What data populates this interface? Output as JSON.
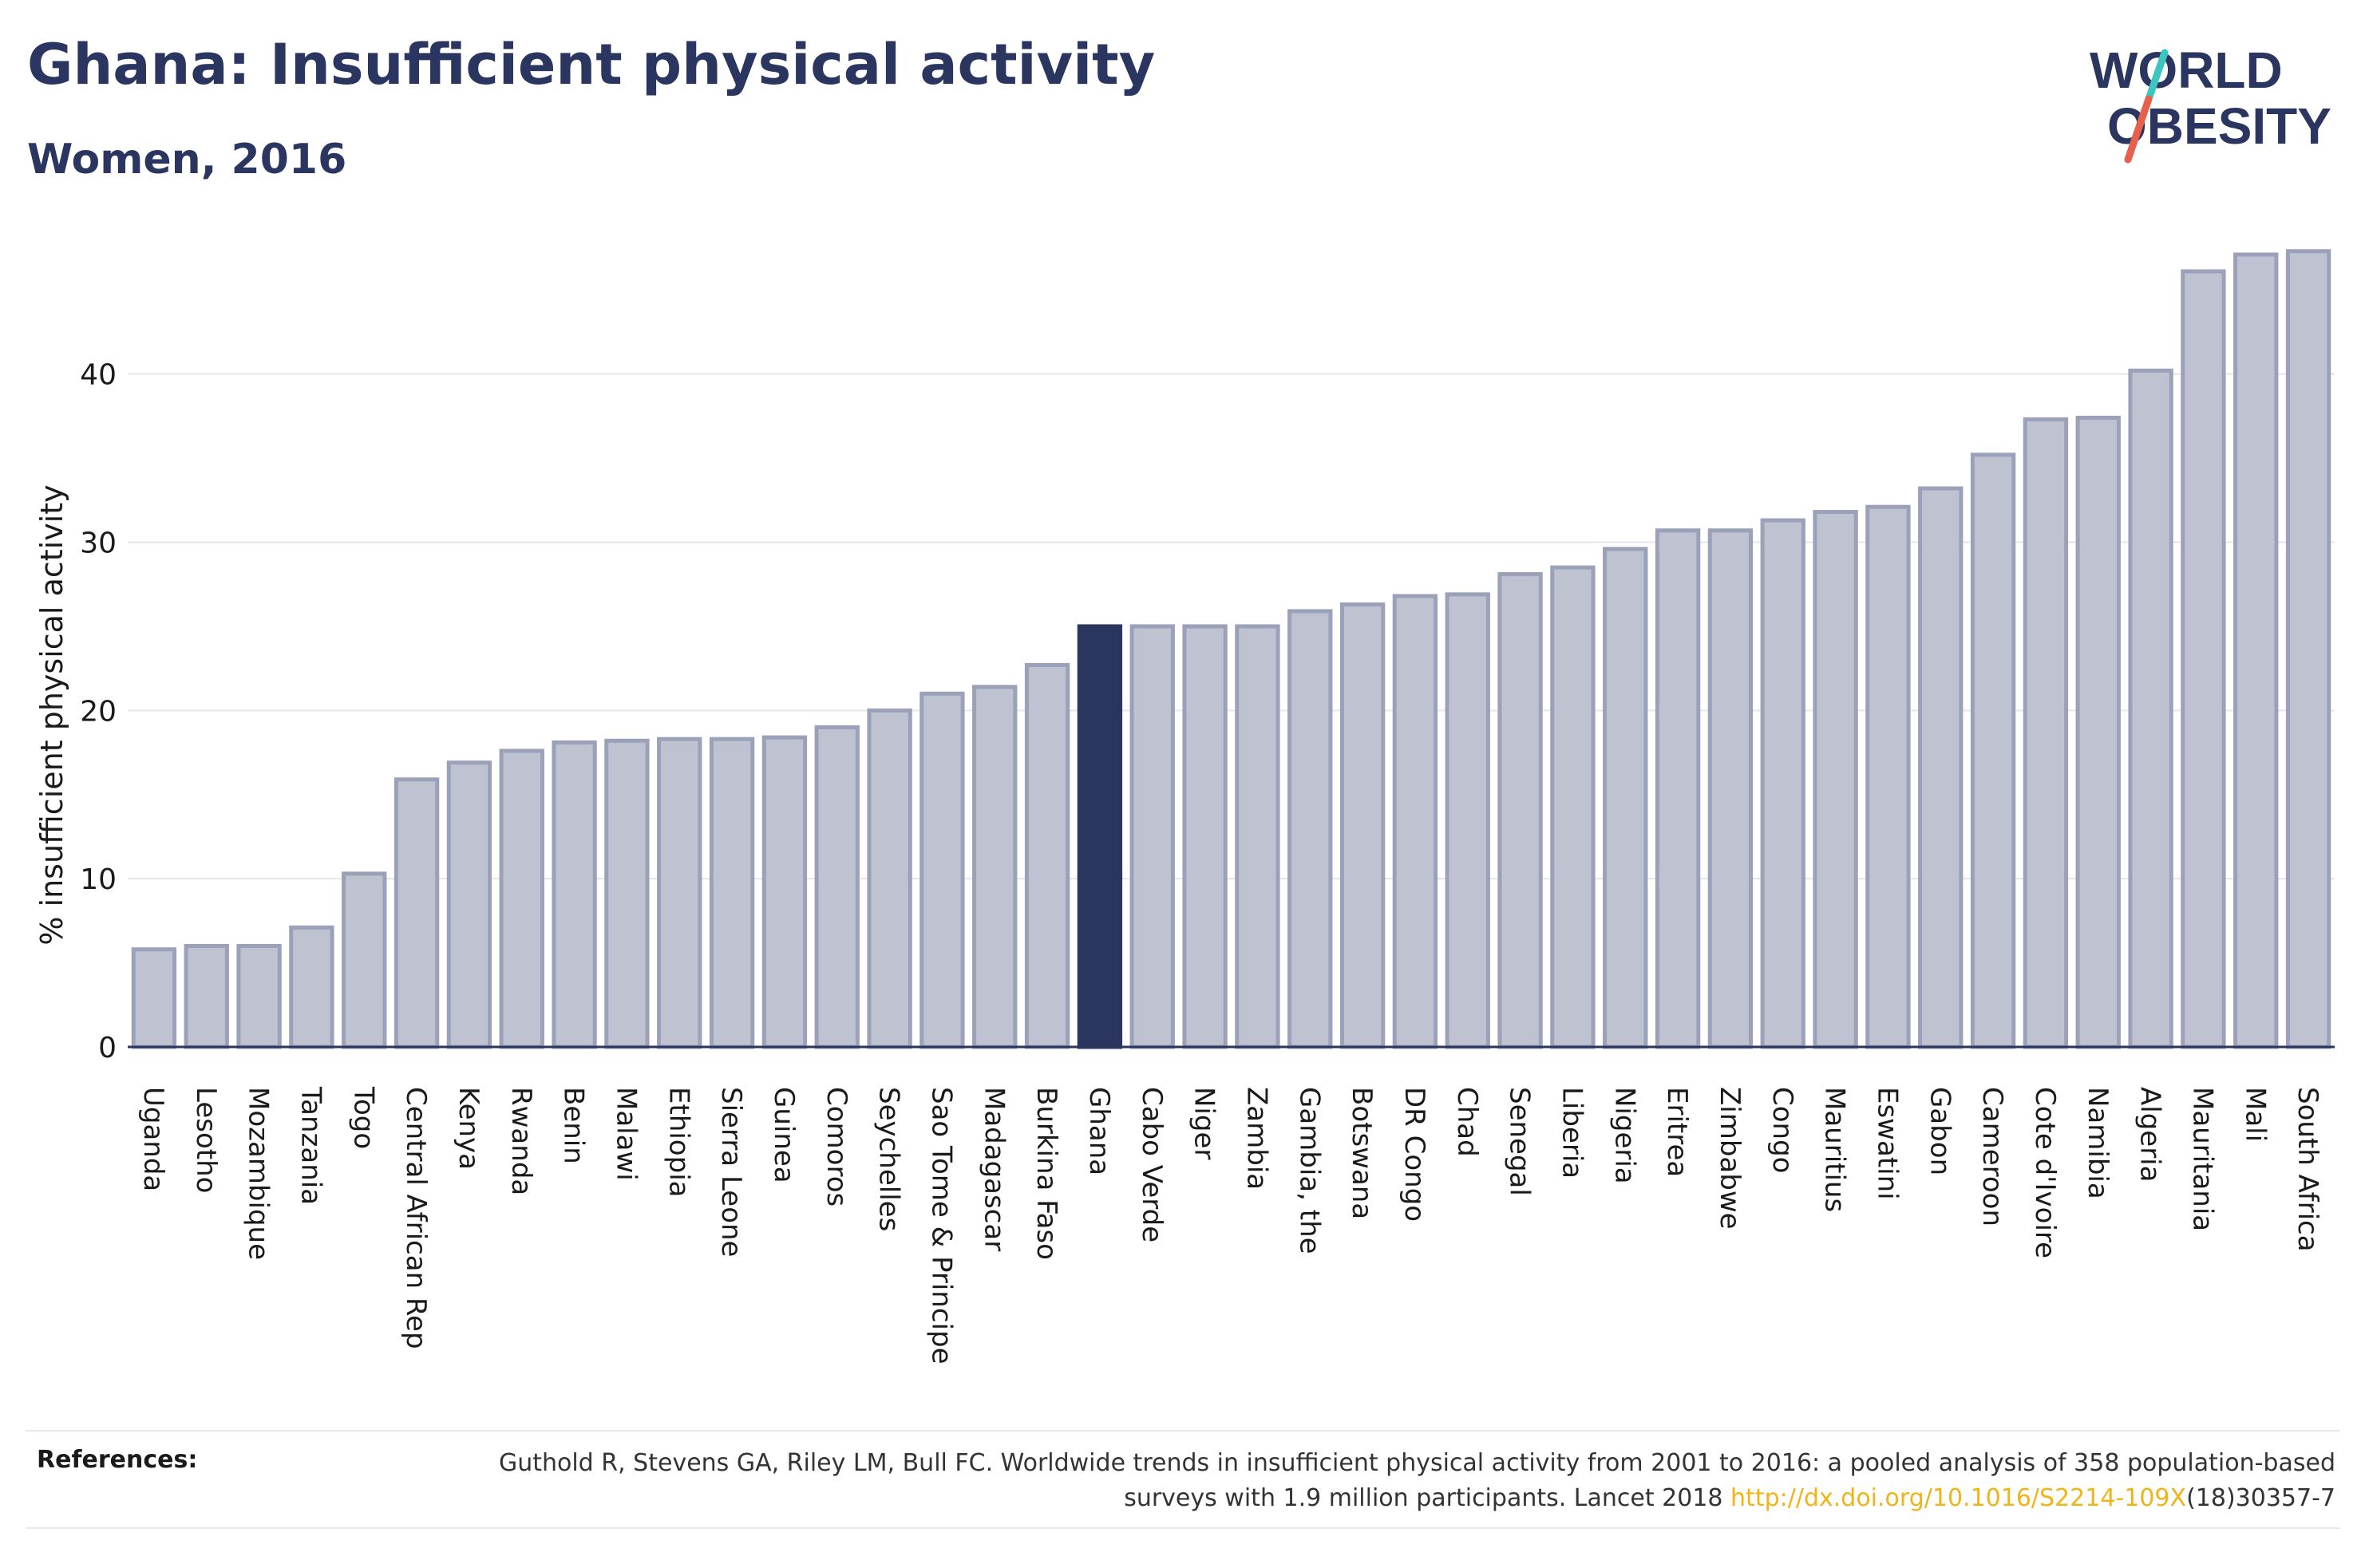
{
  "header": {
    "title": "Ghana: Insufficient physical activity",
    "subtitle": "Women, 2016"
  },
  "logo": {
    "line1": "WORLD",
    "line2": "OBESITY"
  },
  "colors": {
    "bar": "#bfc3d1",
    "bar_stroke": "#9aa1b8",
    "highlight": "#2b3660",
    "accent_teal": "#3cc6c0",
    "accent_red": "#e8604c",
    "link": "#f0b419"
  },
  "chart_data": {
    "type": "bar",
    "ylabel": "% insufficient physical activity",
    "ylim": [
      0,
      48
    ],
    "yticks": [
      0,
      10,
      20,
      30,
      40
    ],
    "grid": true,
    "highlight": "Ghana",
    "categories": [
      "Uganda",
      "Lesotho",
      "Mozambique",
      "Tanzania",
      "Togo",
      "Central African Rep",
      "Kenya",
      "Rwanda",
      "Benin",
      "Malawi",
      "Ethiopia",
      "Sierra Leone",
      "Guinea",
      "Comoros",
      "Seychelles",
      "Sao Tome & Principe",
      "Madagascar",
      "Burkina Faso",
      "Ghana",
      "Cabo Verde",
      "Niger",
      "Zambia",
      "Gambia, the",
      "Botswana",
      "DR Congo",
      "Chad",
      "Senegal",
      "Liberia",
      "Nigeria",
      "Eritrea",
      "Zimbabwe",
      "Congo",
      "Mauritius",
      "Eswatini",
      "Gabon",
      "Cameroon",
      "Cote d'Ivoire",
      "Namibia",
      "Algeria",
      "Mauritania",
      "Mali",
      "South Africa"
    ],
    "values": [
      5.8,
      6.0,
      6.0,
      7.1,
      10.3,
      15.9,
      16.9,
      17.6,
      18.1,
      18.2,
      18.3,
      18.3,
      18.4,
      19.0,
      20.0,
      21.0,
      21.4,
      22.7,
      25.0,
      25.0,
      25.0,
      25.0,
      25.9,
      26.3,
      26.8,
      26.9,
      28.1,
      28.5,
      29.6,
      30.7,
      30.7,
      31.3,
      31.8,
      32.1,
      33.2,
      35.2,
      37.3,
      37.4,
      40.2,
      46.1,
      47.1,
      47.3
    ]
  },
  "references": {
    "label": "References:",
    "text_before": "Guthold R, Stevens GA, Riley LM, Bull FC. Worldwide trends in insufficient physical activity from 2001 to 2016: a pooled analysis of 358 population-based surveys with 1.9 million participants. Lancet 2018 ",
    "link": "http://dx.doi.org/10.1016/S2214-109X",
    "text_after": "(18)30357-7"
  }
}
